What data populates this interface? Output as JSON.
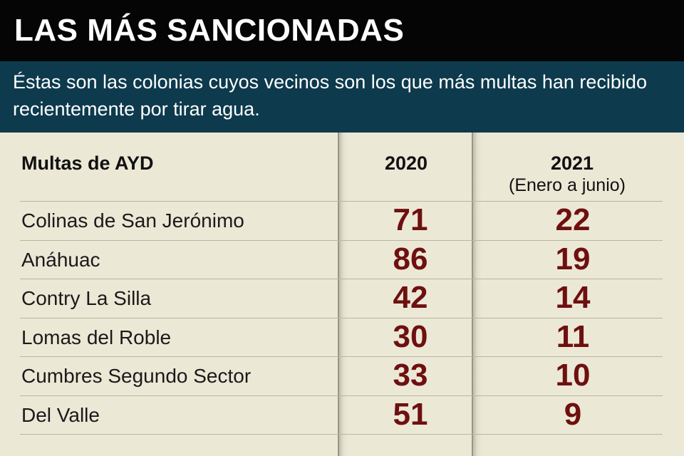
{
  "header": {
    "title": "LAS MÁS SANCIONADAS",
    "subtitle": "Éstas son las colonias cuyos vecinos son los que más multas han recibido recientemente por tirar agua."
  },
  "chart_data": {
    "type": "table",
    "columns": [
      "Multas de AYD",
      "2020",
      "2021"
    ],
    "column_notes": {
      "2021": "(Enero a junio)"
    },
    "categories": [
      "Colinas de San Jerónimo",
      "Anáhuac",
      "Contry La Silla",
      "Lomas del Roble",
      "Cumbres Segundo Sector",
      "Del Valle"
    ],
    "series": [
      {
        "name": "2020",
        "values": [
          71,
          86,
          42,
          30,
          33,
          51
        ]
      },
      {
        "name": "2021",
        "values": [
          22,
          19,
          14,
          11,
          10,
          9
        ]
      }
    ],
    "colors": {
      "values": "#6e1010",
      "title_bg": "#050505",
      "subtitle_bg": "#0d3a4d",
      "table_bg": "#ece8d6"
    }
  }
}
